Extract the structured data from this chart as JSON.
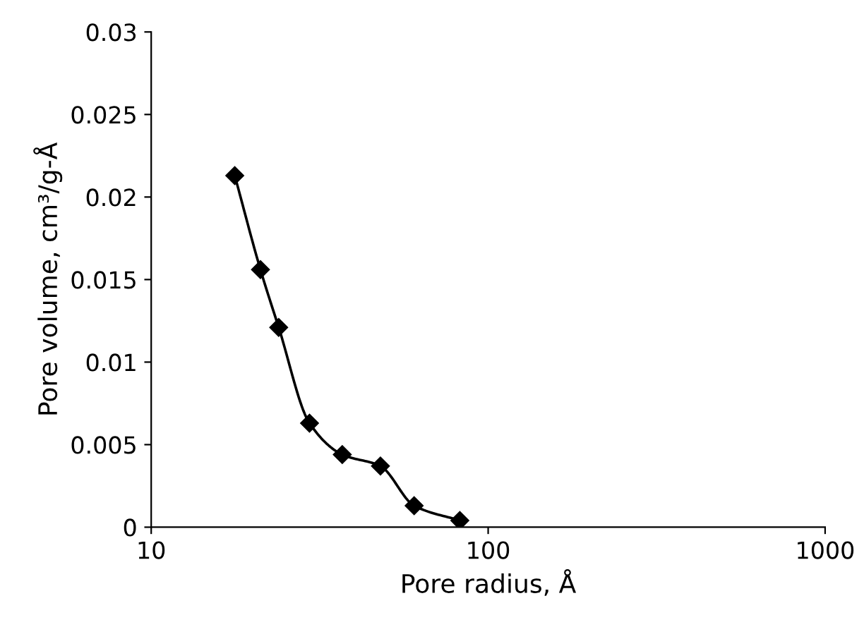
{
  "chart_data": {
    "type": "line",
    "xlabel": "Pore radius, Å",
    "ylabel": "Pore volume, cm³/g-Å",
    "log": "x",
    "xlim": [
      10,
      1000
    ],
    "xticks": [
      10,
      100,
      1000
    ],
    "ylim": [
      0,
      0.03
    ],
    "yticks": [
      0,
      0.005,
      0.01,
      0.015,
      0.02,
      0.025,
      0.03
    ],
    "grid": false,
    "marker": "diamond",
    "line_style": "solid",
    "series": [
      {
        "color": "#000000",
        "x": [
          17.7,
          21.1,
          23.9,
          29.5,
          36.9,
          47.9,
          60.3,
          82.4
        ],
        "values": [
          0.0213,
          0.0156,
          0.0121,
          0.0063,
          0.0044,
          0.0037,
          0.0013,
          0.0004
        ]
      }
    ]
  }
}
